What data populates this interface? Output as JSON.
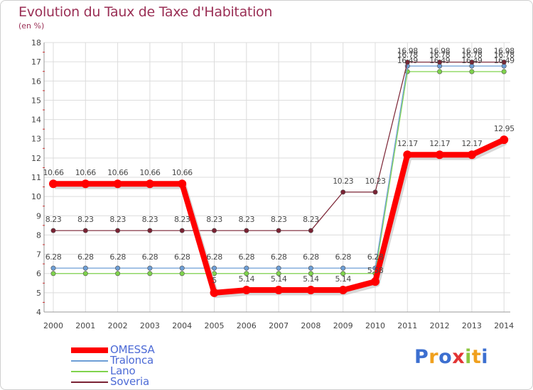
{
  "chart_data": {
    "type": "line",
    "title": "Evolution du Taux de Taxe d'Habitation",
    "unit_label": "(en %)",
    "xlabel": "",
    "ylabel": "",
    "ylim": [
      4,
      18
    ],
    "yticks": [
      "4",
      "5",
      "6",
      "7",
      "8",
      "9",
      "10",
      "11",
      "12",
      "13",
      "14",
      "15",
      "16",
      "17",
      "18"
    ],
    "categories": [
      "2000",
      "2001",
      "2002",
      "2003",
      "2004",
      "2005",
      "2006",
      "2007",
      "2008",
      "2009",
      "2010",
      "2011",
      "2012",
      "2013",
      "2014"
    ],
    "grid": true,
    "legend_position": "bottom-left",
    "series": [
      {
        "name": "OMESSA",
        "color": "#ff0000",
        "values": [
          10.66,
          10.66,
          10.66,
          10.66,
          10.66,
          5,
          5.14,
          5.14,
          5.14,
          5.14,
          5.58,
          12.17,
          12.17,
          12.17,
          12.95
        ],
        "labels": [
          "10.66",
          "10.66",
          "10.66",
          "10.66",
          "10.66",
          "5",
          "5.14",
          "5.14",
          "5.14",
          "5.14",
          "5.58",
          "12.17",
          "12.17",
          "12.17",
          "12.95"
        ]
      },
      {
        "name": "Tralonca",
        "color": "#6d9ed6",
        "values": [
          6.28,
          6.28,
          6.28,
          6.28,
          6.28,
          6.28,
          6.28,
          6.28,
          6.28,
          6.28,
          6.28,
          16.78,
          16.78,
          16.78,
          16.78
        ],
        "labels": [
          "6.28",
          "6.28",
          "6.28",
          "6.28",
          "6.28",
          "6.28",
          "6.28",
          "6.28",
          "6.28",
          "6.28",
          "6.28",
          "16.78",
          "16.78",
          "16.78",
          "16.78"
        ]
      },
      {
        "name": "Lano",
        "color": "#7fd34c",
        "values": [
          6,
          6,
          6,
          6,
          6,
          6,
          6,
          6,
          6,
          6,
          6,
          16.49,
          16.49,
          16.49,
          16.49
        ],
        "labels": [
          "",
          "",
          "",
          "",
          "",
          "",
          "",
          "",
          "",
          "",
          "",
          "16.49",
          "16.49",
          "16.49",
          "16.49"
        ]
      },
      {
        "name": "Soveria",
        "color": "#7a2233",
        "values": [
          8.23,
          8.23,
          8.23,
          8.23,
          8.23,
          8.23,
          8.23,
          8.23,
          8.23,
          10.23,
          10.23,
          16.98,
          16.98,
          16.98,
          16.98
        ],
        "labels": [
          "8.23",
          "8.23",
          "8.23",
          "8.23",
          "8.23",
          "8.23",
          "8.23",
          "8.23",
          "8.23",
          "10.23",
          "10.23",
          "16.98",
          "16.98",
          "16.98",
          "16.98"
        ]
      }
    ]
  },
  "legend": {
    "items": [
      {
        "label": "OMESSA"
      },
      {
        "label": "Tralonca"
      },
      {
        "label": "Lano"
      },
      {
        "label": "Soveria"
      }
    ]
  },
  "logo": {
    "letters": [
      "P",
      "r",
      "o",
      "x",
      "i",
      "t",
      "i"
    ],
    "colors": [
      "#3c6fd0",
      "#f0a01e",
      "#3c6fd0",
      "#e23434",
      "#8cc63f",
      "#f0a01e",
      "#3c6fd0"
    ]
  }
}
